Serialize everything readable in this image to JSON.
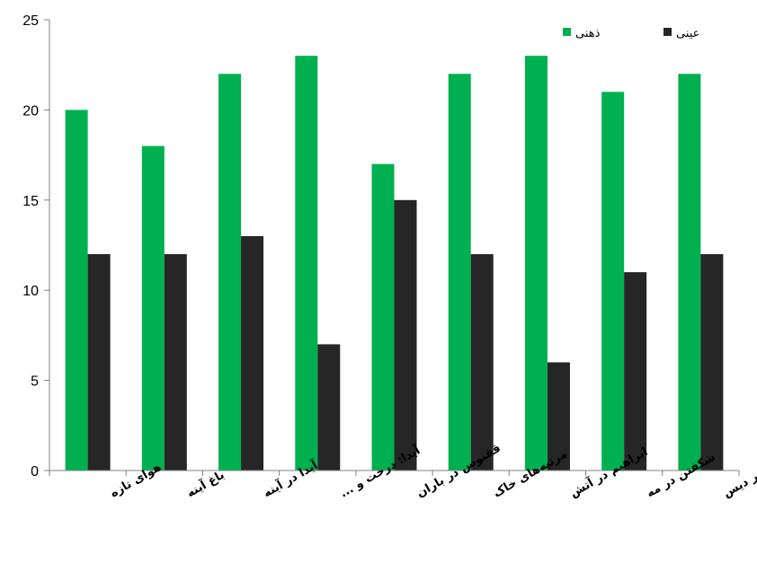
{
  "chart_data": {
    "type": "bar",
    "categories": [
      "هوای تازه",
      "باغ آینه",
      "آیدا در آینه",
      "آیدا: درخت و ...",
      "ققنوس در باران",
      "مرثیه‌های خاک",
      "ابراهیم در آتش",
      "شکفتن در مه",
      "دشنه در دیس"
    ],
    "series": [
      {
        "name": "ذهنی",
        "color": "#00b050",
        "values": [
          20,
          18,
          22,
          23,
          17,
          22,
          23,
          21,
          22
        ]
      },
      {
        "name": "عینی",
        "color": "#262626",
        "values": [
          12,
          12,
          13,
          7,
          15,
          12,
          6,
          11,
          12
        ]
      }
    ],
    "yticks": [
      0,
      5,
      10,
      15,
      20,
      25
    ],
    "ylim": [
      0,
      25
    ],
    "legend_position": "top-right",
    "grid": false
  }
}
